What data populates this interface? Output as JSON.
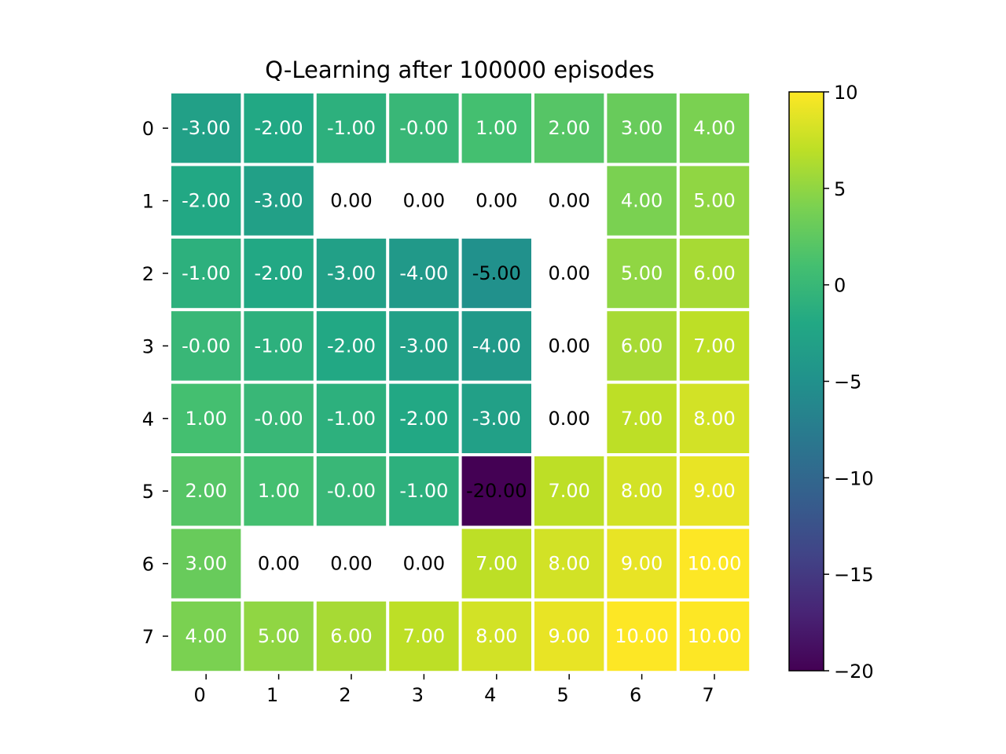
{
  "chart_data": {
    "type": "heatmap",
    "title": "Q-Learning after 100000 episodes",
    "xlabel": "",
    "ylabel": "",
    "x_ticks": [
      "0",
      "1",
      "2",
      "3",
      "4",
      "5",
      "6",
      "7"
    ],
    "y_ticks": [
      "0",
      "1",
      "2",
      "3",
      "4",
      "5",
      "6",
      "7"
    ],
    "values": [
      [
        -3,
        -2,
        -1,
        0,
        1,
        2,
        3,
        4
      ],
      [
        -2,
        -3,
        null,
        null,
        null,
        null,
        4,
        5
      ],
      [
        -1,
        -2,
        -3,
        -4,
        -5,
        null,
        5,
        6
      ],
      [
        0,
        -1,
        -2,
        -3,
        -4,
        null,
        6,
        7
      ],
      [
        1,
        0,
        -1,
        -2,
        -3,
        null,
        7,
        8
      ],
      [
        2,
        1,
        0,
        -1,
        -20,
        7,
        8,
        9
      ],
      [
        3,
        null,
        null,
        null,
        7,
        8,
        9,
        10
      ],
      [
        4,
        5,
        6,
        7,
        8,
        9,
        10,
        10
      ]
    ],
    "labels": [
      [
        "-3.00",
        "-2.00",
        "-1.00",
        "-0.00",
        "1.00",
        "2.00",
        "3.00",
        "4.00"
      ],
      [
        "-2.00",
        "-3.00",
        "0.00",
        "0.00",
        "0.00",
        "0.00",
        "4.00",
        "5.00"
      ],
      [
        "-1.00",
        "-2.00",
        "-3.00",
        "-4.00",
        "-5.00",
        "0.00",
        "5.00",
        "6.00"
      ],
      [
        "-0.00",
        "-1.00",
        "-2.00",
        "-3.00",
        "-4.00",
        "0.00",
        "6.00",
        "7.00"
      ],
      [
        "1.00",
        "-0.00",
        "-1.00",
        "-2.00",
        "-3.00",
        "0.00",
        "7.00",
        "8.00"
      ],
      [
        "2.00",
        "1.00",
        "-0.00",
        "-1.00",
        "-20.00",
        "7.00",
        "8.00",
        "9.00"
      ],
      [
        "3.00",
        "0.00",
        "0.00",
        "0.00",
        "7.00",
        "8.00",
        "9.00",
        "10.00"
      ],
      [
        "4.00",
        "5.00",
        "6.00",
        "7.00",
        "8.00",
        "9.00",
        "10.00",
        "10.00"
      ]
    ],
    "label_colors": [
      [
        "white",
        "white",
        "white",
        "white",
        "white",
        "white",
        "white",
        "white"
      ],
      [
        "white",
        "white",
        "black",
        "black",
        "black",
        "black",
        "white",
        "white"
      ],
      [
        "white",
        "white",
        "white",
        "white",
        "black",
        "black",
        "white",
        "white"
      ],
      [
        "white",
        "white",
        "white",
        "white",
        "white",
        "black",
        "white",
        "white"
      ],
      [
        "white",
        "white",
        "white",
        "white",
        "white",
        "black",
        "white",
        "white"
      ],
      [
        "white",
        "white",
        "white",
        "white",
        "black",
        "white",
        "white",
        "white"
      ],
      [
        "white",
        "black",
        "black",
        "black",
        "white",
        "white",
        "white",
        "white"
      ],
      [
        "white",
        "white",
        "white",
        "white",
        "white",
        "white",
        "white",
        "white"
      ]
    ],
    "colorbar": {
      "min": -20,
      "max": 10,
      "ticks": [
        10,
        5,
        0,
        -5,
        -10,
        -15,
        -20
      ],
      "tick_labels": [
        "10",
        "5",
        "0",
        "−5",
        "−10",
        "−15",
        "−20"
      ],
      "colormap": "viridis"
    },
    "grid": false
  }
}
